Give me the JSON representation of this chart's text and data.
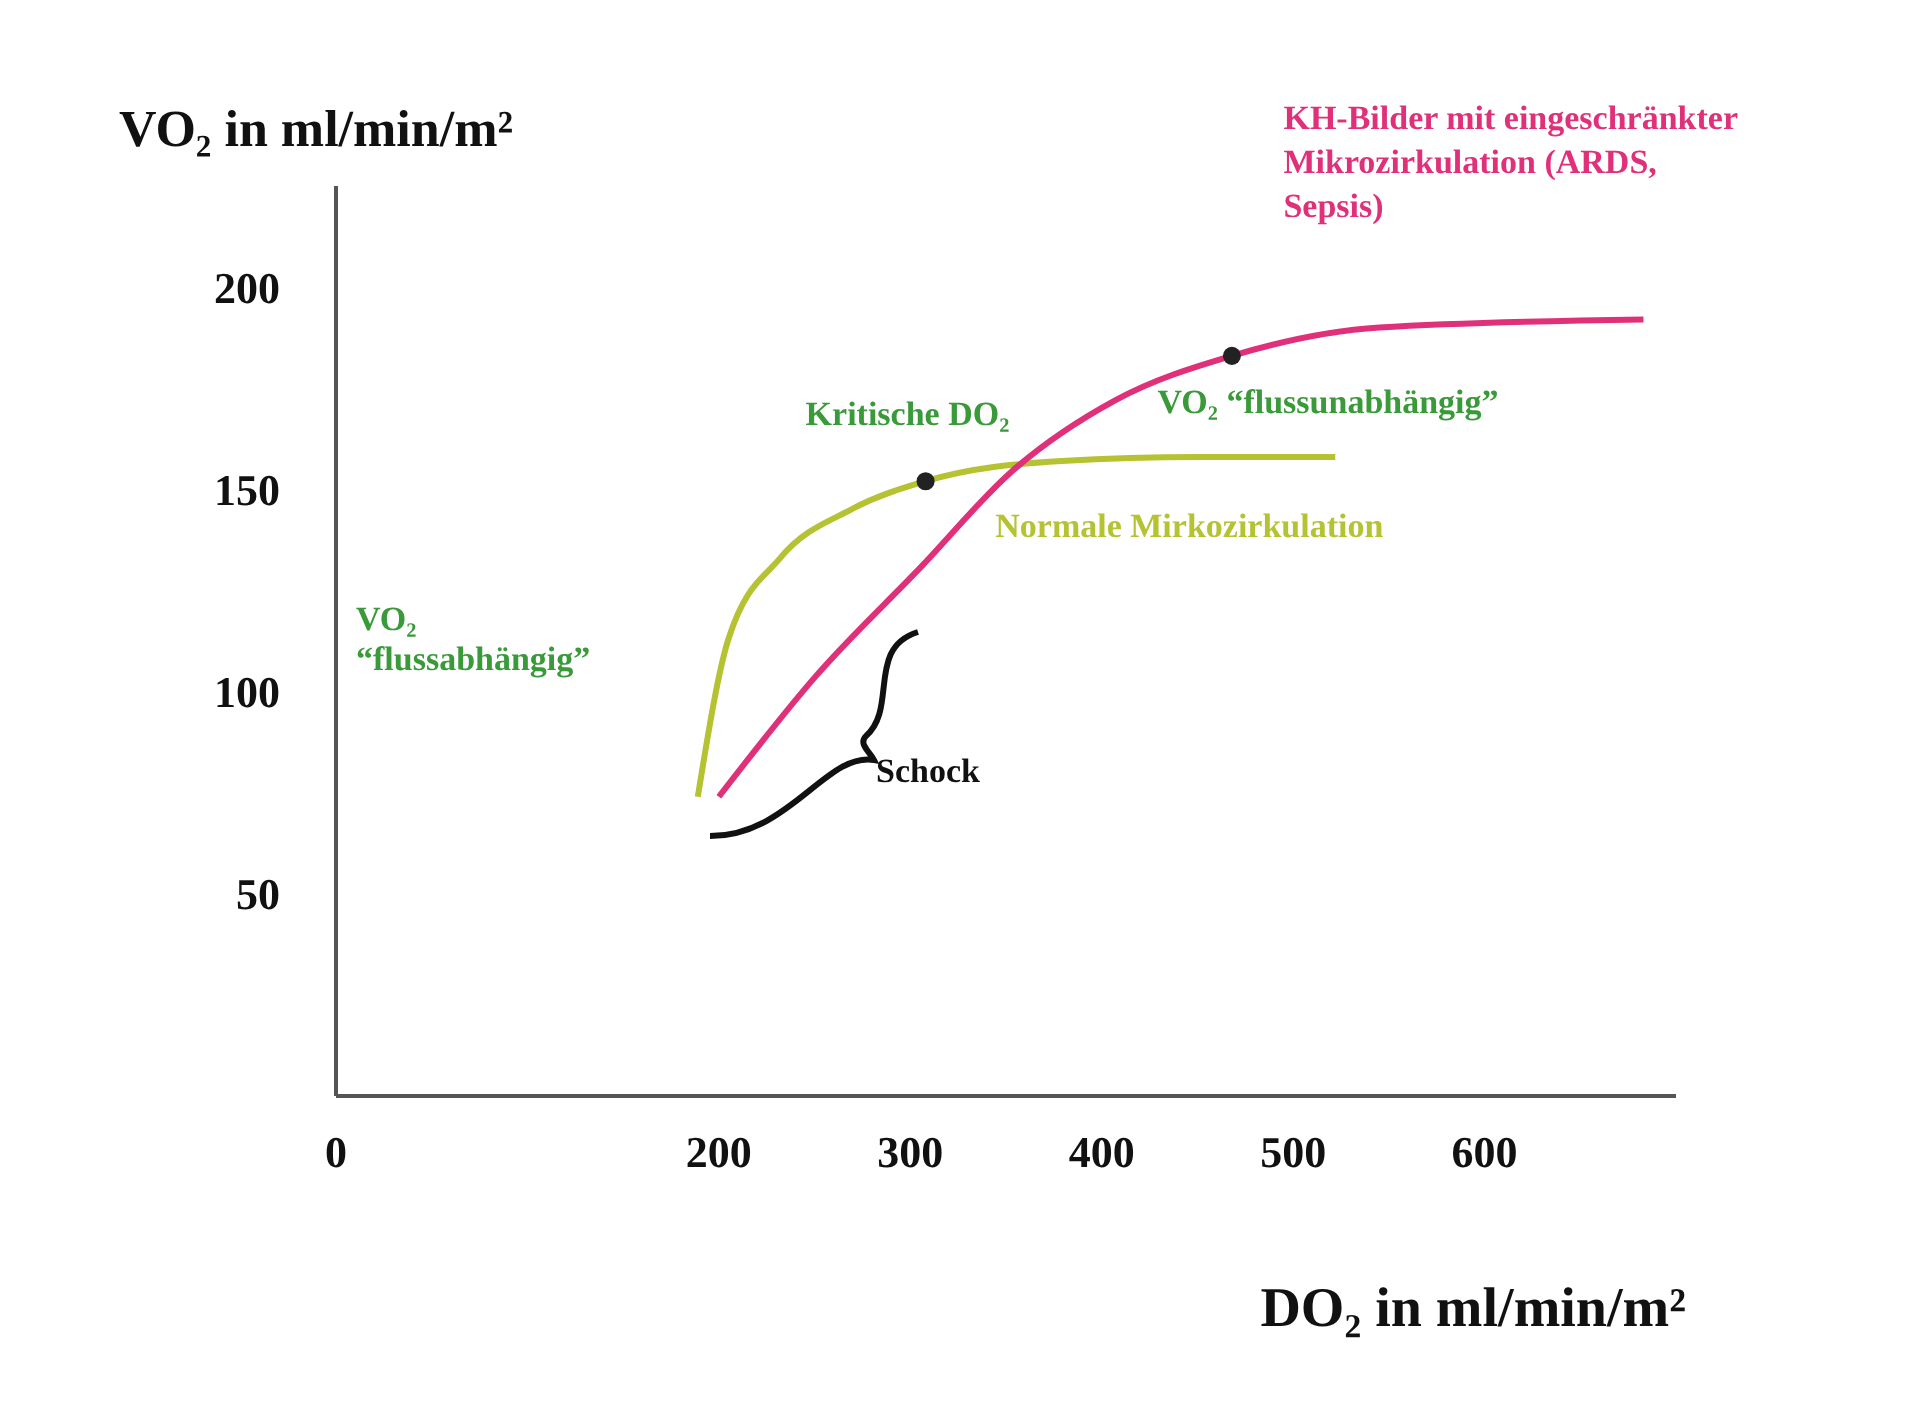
{
  "chart_data": {
    "type": "line",
    "xlabel": "DO₂ in ml/min/m²",
    "ylabel": "VO₂ in ml/min/m²",
    "xlim": [
      0,
      700
    ],
    "xticks": [
      0,
      200,
      300,
      400,
      500,
      600
    ],
    "ylim": [
      0,
      225
    ],
    "yticks": [
      50,
      100,
      150,
      200
    ],
    "grid": false,
    "legend": false,
    "marker": "none",
    "line_style": "solid",
    "series": [
      {
        "name": "Normale Mirkozirkulation",
        "color": "#b5c232",
        "x": [
          189,
          205,
          232,
          269,
          308,
          379,
          450,
          522
        ],
        "values": [
          74,
          113,
          133,
          145,
          152,
          157,
          158,
          158
        ]
      },
      {
        "name": "KH-Bilder mit eingeschränkter Mikrozirkulation (ARDS, Sepsis)",
        "color": "#e0307a",
        "x": [
          200,
          251,
          306,
          352,
          407,
          468,
          545,
          683
        ],
        "values": [
          74,
          104,
          131,
          154,
          172,
          183,
          190,
          192
        ]
      },
      {
        "type": "scatter",
        "marker": "circle",
        "color": "#222222",
        "x": [
          308,
          468
        ],
        "values": [
          152,
          183
        ]
      }
    ],
    "annotations": [
      {
        "text": "Kritische DO₂",
        "x": 308,
        "y": 152
      },
      "VO₂ “flussabhängig”",
      {
        "text": "VO₂ “flussunabhängig”",
        "x": 450,
        "y": 158
      },
      "Schock"
    ]
  }
}
